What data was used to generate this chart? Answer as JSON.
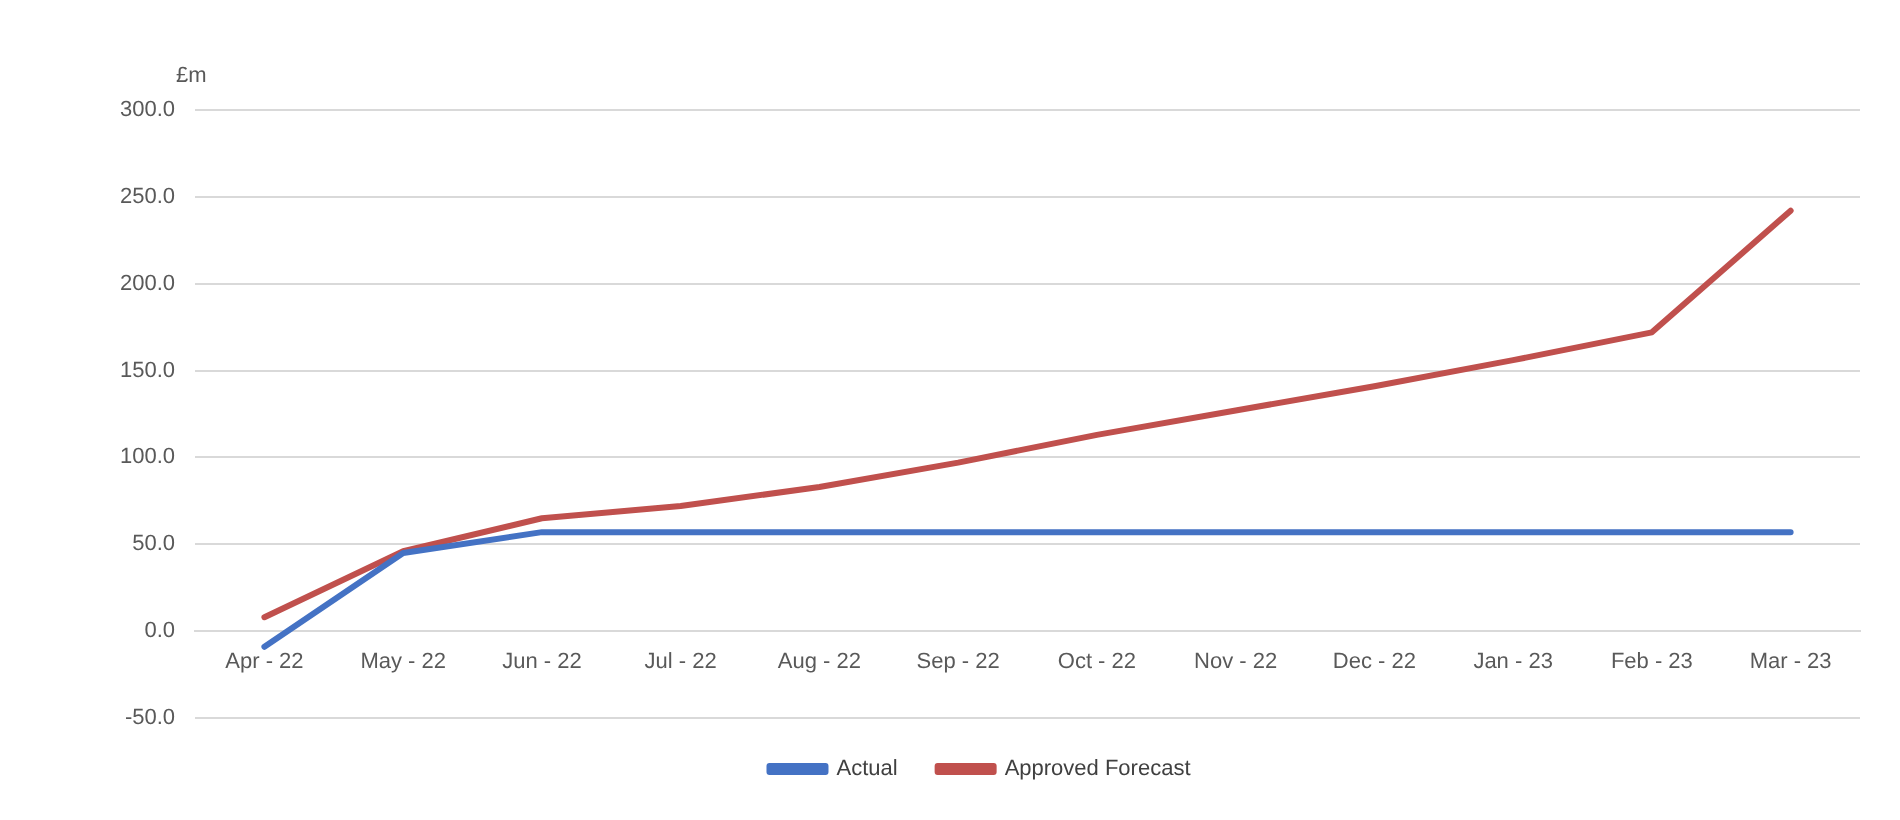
{
  "chart_data": {
    "type": "line",
    "ylabel": "£m",
    "categories": [
      "Apr - 22",
      "May - 22",
      "Jun - 22",
      "Jul - 22",
      "Aug - 22",
      "Sep - 22",
      "Oct - 22",
      "Nov - 22",
      "Dec - 22",
      "Jan - 23",
      "Feb - 23",
      "Mar - 23"
    ],
    "series": [
      {
        "name": "Actual",
        "color": "#4472c4",
        "values": [
          -9,
          45,
          57,
          57,
          57,
          57,
          57,
          57,
          57,
          57,
          57,
          57
        ]
      },
      {
        "name": "Approved Forecast",
        "color": "#c0504d",
        "values": [
          8,
          46,
          65,
          72,
          83,
          97,
          113,
          127,
          141,
          156,
          172,
          242
        ]
      }
    ],
    "ylim": [
      -50,
      300
    ],
    "yticks": [
      {
        "value": -50,
        "label": "-50.0"
      },
      {
        "value": 0,
        "label": "0.0"
      },
      {
        "value": 50,
        "label": "50.0"
      },
      {
        "value": 100,
        "label": "100.0"
      },
      {
        "value": 150,
        "label": "150.0"
      },
      {
        "value": 200,
        "label": "200.0"
      },
      {
        "value": 250,
        "label": "250.0"
      },
      {
        "value": 300,
        "label": "300.0"
      }
    ],
    "grid": "y",
    "legend": "bottom",
    "marker": "none",
    "line_style": "solid"
  }
}
